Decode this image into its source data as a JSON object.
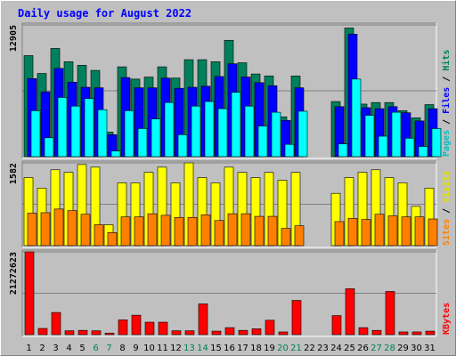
{
  "chart_data": {
    "type": "bar",
    "title": "Daily usage for August 2022",
    "categories": [
      "1",
      "2",
      "3",
      "4",
      "5",
      "6",
      "7",
      "8",
      "9",
      "10",
      "11",
      "12",
      "13",
      "14",
      "15",
      "16",
      "17",
      "18",
      "19",
      "20",
      "21",
      "22",
      "23",
      "24",
      "25",
      "26",
      "27",
      "28",
      "29",
      "30",
      "31"
    ],
    "weekend_days": [
      "6",
      "7",
      "13",
      "14",
      "20",
      "21",
      "27",
      "28"
    ],
    "panels": [
      {
        "name": "hits-files-pages",
        "max_label": "12905",
        "ylim": [
          0,
          12905
        ],
        "side_labels": [
          "Pages",
          "Files",
          "Hits"
        ],
        "series": [
          {
            "name": "Hits",
            "color": "#00805c",
            "values": [
              9900,
              8150,
              10600,
              9300,
              8950,
              8450,
              2400,
              8800,
              7600,
              7800,
              8800,
              7700,
              9500,
              9500,
              9300,
              11400,
              9200,
              8100,
              7900,
              3900,
              7900,
              0,
              0,
              5400,
              12600,
              5150,
              5300,
              5300,
              4500,
              3800,
              5100
            ]
          },
          {
            "name": "Files",
            "color": "#0000ff",
            "values": [
              7650,
              6350,
              8650,
              7300,
              6800,
              6750,
              2150,
              7750,
              6750,
              6750,
              7700,
              6700,
              6800,
              6900,
              7850,
              9100,
              7800,
              7250,
              6950,
              3550,
              6750,
              0,
              0,
              4900,
              12000,
              4800,
              4700,
              4900,
              4300,
              3500,
              4700
            ]
          },
          {
            "name": "Pages",
            "color": "#00ffff",
            "values": [
              4500,
              1850,
              5800,
              4950,
              5700,
              4600,
              550,
              4500,
              2750,
              3700,
              5300,
              2150,
              4950,
              5400,
              4700,
              6300,
              4950,
              3000,
              4350,
              1200,
              4450,
              0,
              0,
              1250,
              7600,
              4050,
              2000,
              4350,
              1800,
              1000,
              2750
            ]
          }
        ]
      },
      {
        "name": "visits-sites",
        "max_label": "1582",
        "ylim": [
          0,
          1582
        ],
        "side_labels": [
          "Sites",
          "Visits"
        ],
        "series": [
          {
            "name": "Visits",
            "color": "#ffff00",
            "values": [
              1300,
              1100,
              1450,
              1400,
              1550,
              1500,
              400,
              1200,
              1200,
              1400,
              1500,
              1200,
              1582,
              1300,
              1200,
              1500,
              1400,
              1300,
              1400,
              1250,
              1400,
              0,
              0,
              1000,
              1300,
              1400,
              1450,
              1300,
              1200,
              750,
              1100
            ]
          },
          {
            "name": "Sites",
            "color": "#ff8000",
            "values": [
              620,
              630,
              700,
              670,
              600,
              400,
              250,
              550,
              550,
              610,
              580,
              540,
              540,
              590,
              480,
              610,
              610,
              560,
              560,
              330,
              380,
              0,
              0,
              460,
              520,
              500,
              600,
              570,
              550,
              550,
              510
            ]
          }
        ]
      },
      {
        "name": "kbytes",
        "max_label": "21272623",
        "ylim": [
          0,
          21272623
        ],
        "side_labels": [
          "KBytes"
        ],
        "series": [
          {
            "name": "KBytes",
            "color": "#ff0000",
            "values": [
              21272623,
              1600000,
              5700000,
              1000000,
              1100000,
              1000000,
              400000,
              3800000,
              5000000,
              3200000,
              3200000,
              1000000,
              1000000,
              7900000,
              900000,
              1800000,
              1100000,
              1500000,
              3700000,
              700000,
              8800000,
              0,
              0,
              4900000,
              11800000,
              1800000,
              1100000,
              11100000,
              700000,
              700000,
              900000
            ]
          }
        ]
      }
    ]
  }
}
